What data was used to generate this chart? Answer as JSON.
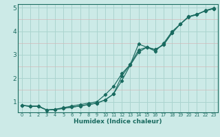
{
  "xlabel": "Humidex (Indice chaleur)",
  "ylabel": "",
  "bg_color": "#cceae7",
  "grid_color_major": "#aad4cf",
  "grid_color_minor": "#d4b8b8",
  "line_color": "#1a6b60",
  "xlim": [
    -0.5,
    23.5
  ],
  "ylim": [
    0.55,
    5.15
  ],
  "yticks": [
    1,
    2,
    3,
    4,
    5
  ],
  "xticks": [
    0,
    1,
    2,
    3,
    4,
    5,
    6,
    7,
    8,
    9,
    10,
    11,
    12,
    13,
    14,
    15,
    16,
    17,
    18,
    19,
    20,
    21,
    22,
    23
  ],
  "lines": [
    {
      "x": [
        0,
        1,
        2,
        3,
        4,
        5,
        6,
        7,
        8,
        9,
        10,
        11,
        12,
        13,
        14,
        15,
        16,
        17,
        18,
        19,
        20,
        21,
        22,
        23
      ],
      "y": [
        0.85,
        0.82,
        0.82,
        0.65,
        0.68,
        0.75,
        0.82,
        0.88,
        0.94,
        1.0,
        1.3,
        1.65,
        2.2,
        2.58,
        3.45,
        3.32,
        3.15,
        3.48,
        3.98,
        4.3,
        4.6,
        4.7,
        4.88,
        4.98
      ]
    },
    {
      "x": [
        0,
        1,
        2,
        3,
        4,
        5,
        6,
        7,
        8,
        9,
        10,
        11,
        12,
        13,
        14,
        15,
        16,
        17,
        18,
        19,
        20,
        21,
        22,
        23
      ],
      "y": [
        0.85,
        0.8,
        0.8,
        0.65,
        0.67,
        0.72,
        0.77,
        0.82,
        0.88,
        0.94,
        1.08,
        1.33,
        1.9,
        2.55,
        3.1,
        3.32,
        3.22,
        3.42,
        3.92,
        4.3,
        4.62,
        4.72,
        4.86,
        4.96
      ]
    },
    {
      "x": [
        0,
        1,
        2,
        3,
        4,
        5,
        6,
        7,
        8,
        9,
        10,
        11,
        12,
        13,
        14,
        15,
        16,
        17,
        18,
        19,
        20,
        21,
        22,
        23
      ],
      "y": [
        0.85,
        0.8,
        0.8,
        0.65,
        0.67,
        0.72,
        0.77,
        0.82,
        0.88,
        0.94,
        1.08,
        1.33,
        2.1,
        2.58,
        3.2,
        3.32,
        3.22,
        3.42,
        3.92,
        4.3,
        4.62,
        4.72,
        4.86,
        4.96
      ]
    }
  ]
}
